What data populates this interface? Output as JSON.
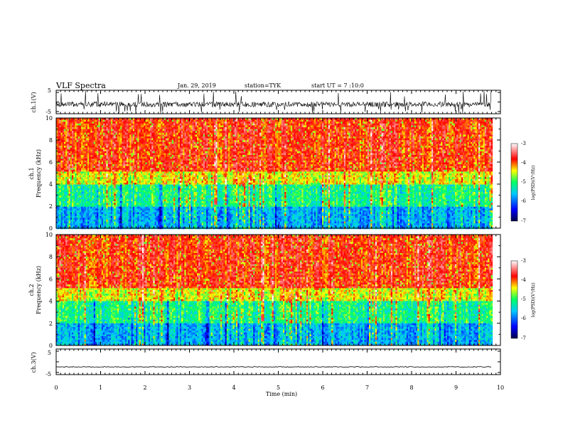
{
  "header": {
    "title": "VLF Spectra",
    "date": "Jan. 29, 2019",
    "station": "station=TYK",
    "start": "start UT = 7 :10:0"
  },
  "chart_data": [
    {
      "type": "line",
      "panel": "ch1-waveform",
      "ylabel": "ch.1(V)",
      "ylim": [
        -5,
        5
      ],
      "yticks": [
        "5",
        "-5"
      ],
      "xlim": [
        0,
        10
      ],
      "signal": "noisy waveform centered near -1 V with frequent negative spikes to about -5 V"
    },
    {
      "type": "heatmap",
      "panel": "ch1-spectrogram",
      "ylabel_lines": [
        "ch.1",
        "Frequency (kHz)"
      ],
      "ylim": [
        0,
        10
      ],
      "yticks": [
        "0",
        "2",
        "4",
        "6",
        "8",
        "10"
      ],
      "xlim": [
        0,
        9.8
      ],
      "colorbar": {
        "label": "log(PSD)(V²/Hz)",
        "range": [
          -7,
          -3
        ],
        "ticks": [
          "-3",
          "-4",
          "-5",
          "-6",
          "-7"
        ],
        "colormap": [
          "#00004a",
          "#0000ff",
          "#00c8ff",
          "#00ff64",
          "#ffff00",
          "#ff0000",
          "#ffffff"
        ]
      },
      "description_levels": {
        "0-2kHz": -6.2,
        "2-4kHz": -5.3,
        "4-5kHz": -4.5,
        "5-10kHz": -3.8
      }
    },
    {
      "type": "heatmap",
      "panel": "ch2-spectrogram",
      "ylabel_lines": [
        "ch.2",
        "Frequency (kHz)"
      ],
      "ylim": [
        0,
        10
      ],
      "yticks": [
        "0",
        "2",
        "4",
        "6",
        "8",
        "10"
      ],
      "xlim": [
        0,
        9.8
      ],
      "colorbar": {
        "label": "log(PSD)(V²/Hz)",
        "range": [
          -7,
          -3
        ],
        "ticks": [
          "-3",
          "-4",
          "-5",
          "-6",
          "-7"
        ],
        "colormap": [
          "#00004a",
          "#0000ff",
          "#00c8ff",
          "#00ff64",
          "#ffff00",
          "#ff0000",
          "#ffffff"
        ]
      }
    },
    {
      "type": "line",
      "panel": "ch3-waveform",
      "ylabel": "ch.3(V)",
      "ylim": [
        -5,
        5
      ],
      "yticks": [
        "5",
        "-5"
      ],
      "xlim": [
        0,
        10
      ],
      "signal": "flat trace near -2 V"
    }
  ],
  "x_axis": {
    "label": "Time (min)",
    "ticks": [
      "0",
      "1",
      "2",
      "3",
      "4",
      "5",
      "6",
      "7",
      "8",
      "9",
      "10"
    ],
    "range": [
      0,
      10
    ]
  }
}
